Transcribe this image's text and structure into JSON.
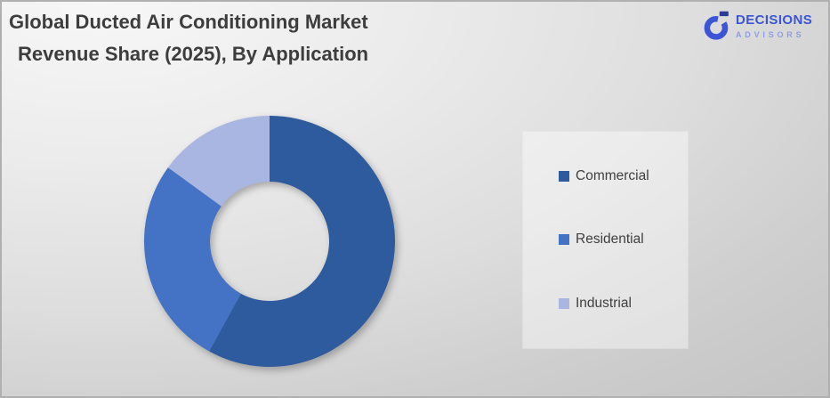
{
  "header": {
    "title_line1": "Global Ducted Air Conditioning Market",
    "title_line2": "Revenue Share (2025), By Application",
    "title_color": "#3d3d3d"
  },
  "logo": {
    "brand": "DECISIONS",
    "sub_brand": "ADVISORS",
    "brand_color": "#3b55d6",
    "sub_brand_color": "#8e9ee3",
    "icon": "stylized-g-monogram",
    "icon_color": "#3b55d6",
    "icon_dash_color": "#2b3c96"
  },
  "chart_data": {
    "type": "pie",
    "subtype": "donut",
    "title": "Global Ducted Air Conditioning Market Revenue Share (2025), By Application",
    "categories": [
      "Commercial",
      "Residential",
      "Industrial"
    ],
    "values": [
      58,
      27,
      15
    ],
    "values_are_estimated_percent": true,
    "colors": [
      "#2e5a9e",
      "#4472c4",
      "#a9b6e1"
    ],
    "start_angle_deg": 0,
    "direction": "clockwise",
    "hole_ratio": 0.475,
    "data_labels": false,
    "legend": {
      "position": "right",
      "items": [
        "Commercial",
        "Residential",
        "Industrial"
      ],
      "text_color": "#3f3f3f"
    }
  }
}
